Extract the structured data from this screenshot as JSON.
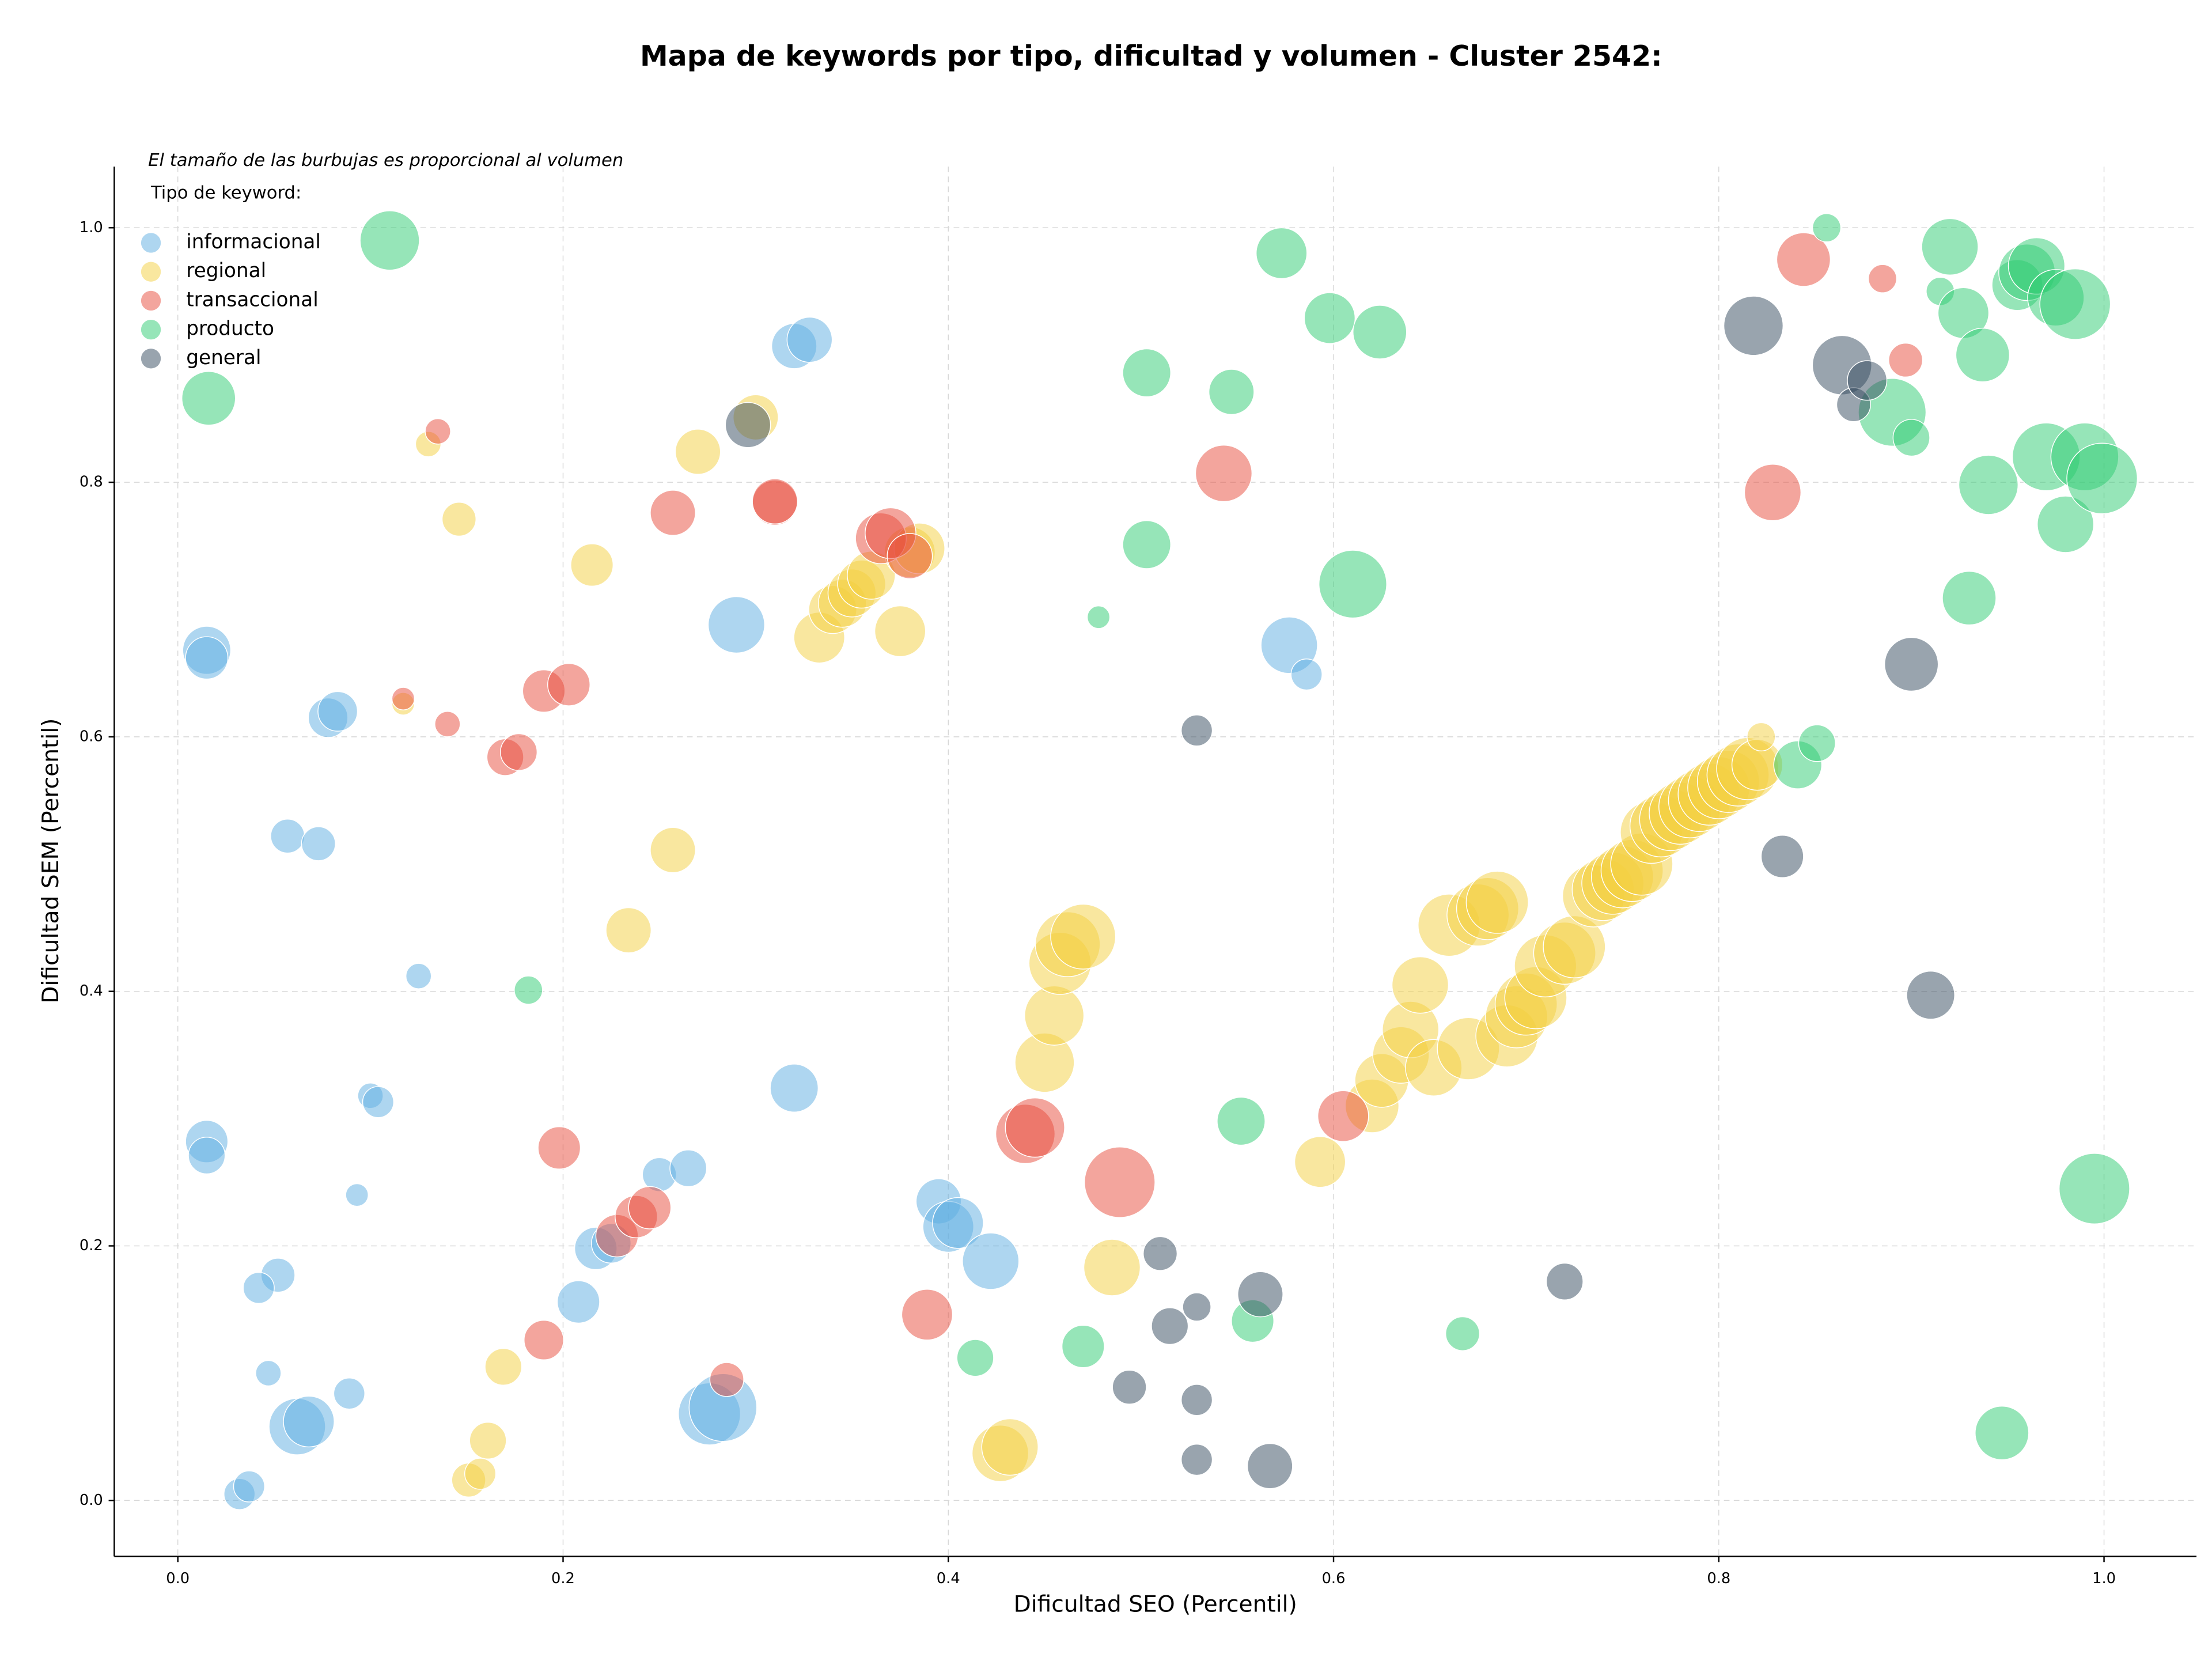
{
  "chart_data": {
    "type": "bubble",
    "title": "Mapa de keywords por tipo, dificultad y volumen - Cluster 2542:",
    "note": "El tamaño de las burbujas es proporcional al volumen",
    "legend_title": "Tipo de keyword:",
    "legend": "upper left",
    "x_label": "Dificultad SEO (Percentil)",
    "y_label": "Dificultad SEM (Percentil)",
    "xlim": [
      -0.033,
      1.048
    ],
    "ylim": [
      -0.044,
      1.048
    ],
    "xticks": [
      {
        "value": 0,
        "label": "0.0"
      },
      0.2,
      0.4,
      0.6,
      0.8,
      {
        "value": 1,
        "label": "1.0"
      }
    ],
    "yticks": [
      {
        "value": 0,
        "label": "0.0"
      },
      0.2,
      0.4,
      0.6,
      0.8,
      {
        "value": 1,
        "label": "1.0"
      }
    ],
    "grid": true,
    "series": [
      {
        "name": "informacional",
        "color": "#5DADE2",
        "x": [
          0.015,
          0.015,
          0.078,
          0.083,
          0.057,
          0.073,
          0.125,
          0.1,
          0.104,
          0.093,
          0.015,
          0.015,
          0.052,
          0.042,
          0.047,
          0.089,
          0.062,
          0.068,
          0.032,
          0.037,
          0.208,
          0.217,
          0.225,
          0.25,
          0.265,
          0.29,
          0.32,
          0.328,
          0.32,
          0.395,
          0.4,
          0.405,
          0.422,
          0.276,
          0.283,
          0.577,
          0.586
        ],
        "y": [
          0.668,
          0.662,
          0.615,
          0.62,
          0.522,
          0.516,
          0.412,
          0.318,
          0.313,
          0.24,
          0.282,
          0.271,
          0.177,
          0.167,
          0.1,
          0.084,
          0.058,
          0.062,
          0.005,
          0.011,
          0.156,
          0.198,
          0.202,
          0.256,
          0.261,
          0.688,
          0.907,
          0.912,
          0.324,
          0.235,
          0.215,
          0.218,
          0.188,
          0.068,
          0.073,
          0.672,
          0.649
        ],
        "sizes": [
          289,
          225,
          196,
          196,
          144,
          144,
          81,
          81,
          121,
          64,
          225,
          169,
          144,
          121,
          81,
          121,
          400,
          324,
          121,
          121,
          225,
          225,
          196,
          144,
          169,
          400,
          256,
          256,
          289,
          256,
          324,
          324,
          400,
          484,
          576,
          400,
          121
        ]
      },
      {
        "name": "regional",
        "color": "#F4D03F",
        "x": [
          0.13,
          0.146,
          0.117,
          0.215,
          0.27,
          0.3,
          0.257,
          0.234,
          0.169,
          0.161,
          0.151,
          0.157,
          0.333,
          0.34,
          0.345,
          0.35,
          0.355,
          0.36,
          0.375,
          0.38,
          0.385,
          0.427,
          0.432,
          0.485,
          0.45,
          0.455,
          0.458,
          0.462,
          0.47,
          0.593,
          0.62,
          0.625,
          0.635,
          0.64,
          0.645,
          0.652,
          0.66,
          0.675,
          0.68,
          0.685,
          0.67,
          0.69,
          0.695,
          0.7,
          0.705,
          0.71,
          0.72,
          0.725,
          0.735,
          0.74,
          0.745,
          0.75,
          0.755,
          0.76,
          0.765,
          0.77,
          0.775,
          0.78,
          0.785,
          0.79,
          0.795,
          0.8,
          0.805,
          0.81,
          0.815,
          0.82,
          0.822
        ],
        "y": [
          0.83,
          0.771,
          0.626,
          0.735,
          0.824,
          0.851,
          0.511,
          0.448,
          0.105,
          0.047,
          0.016,
          0.021,
          0.678,
          0.7,
          0.705,
          0.713,
          0.72,
          0.727,
          0.683,
          0.745,
          0.748,
          0.037,
          0.042,
          0.183,
          0.344,
          0.381,
          0.422,
          0.437,
          0.443,
          0.266,
          0.31,
          0.33,
          0.35,
          0.37,
          0.405,
          0.34,
          0.452,
          0.46,
          0.465,
          0.47,
          0.355,
          0.365,
          0.38,
          0.39,
          0.395,
          0.42,
          0.43,
          0.435,
          0.475,
          0.48,
          0.485,
          0.49,
          0.495,
          0.5,
          0.525,
          0.53,
          0.535,
          0.54,
          0.545,
          0.55,
          0.555,
          0.56,
          0.565,
          0.57,
          0.575,
          0.578,
          0.6
        ],
        "sizes": [
          81,
          144,
          64,
          225,
          256,
          256,
          256,
          256,
          169,
          169,
          144,
          121,
          324,
          289,
          289,
          289,
          289,
          289,
          324,
          324,
          324,
          400,
          400,
          400,
          441,
          441,
          484,
          529,
          529,
          324,
          361,
          361,
          400,
          400,
          400,
          400,
          484,
          484,
          484,
          484,
          484,
          484,
          484,
          484,
          484,
          484,
          484,
          484,
          484,
          484,
          484,
          484,
          484,
          484,
          484,
          484,
          484,
          484,
          484,
          484,
          484,
          484,
          484,
          484,
          484,
          324,
          100
        ]
      },
      {
        "name": "transaccional",
        "color": "#E74C3C",
        "x": [
          0.135,
          0.117,
          0.14,
          0.17,
          0.177,
          0.19,
          0.203,
          0.257,
          0.31,
          0.31,
          0.365,
          0.37,
          0.38,
          0.198,
          0.19,
          0.228,
          0.238,
          0.245,
          0.285,
          0.389,
          0.44,
          0.445,
          0.489,
          0.605,
          0.543,
          0.844,
          0.885,
          0.897,
          0.828
        ],
        "y": [
          0.84,
          0.63,
          0.61,
          0.584,
          0.588,
          0.636,
          0.641,
          0.776,
          0.784,
          0.785,
          0.756,
          0.76,
          0.742,
          0.277,
          0.126,
          0.208,
          0.223,
          0.23,
          0.095,
          0.146,
          0.288,
          0.293,
          0.25,
          0.302,
          0.807,
          0.975,
          0.96,
          0.896,
          0.792
        ],
        "sizes": [
          81,
          64,
          81,
          169,
          169,
          225,
          225,
          256,
          256,
          256,
          324,
          324,
          256,
          225,
          196,
          225,
          225,
          225,
          144,
          324,
          441,
          441,
          625,
          324,
          400,
          361,
          100,
          144,
          400
        ]
      },
      {
        "name": "producto",
        "color": "#2ECC71",
        "x": [
          0.016,
          0.11,
          0.182,
          0.478,
          0.503,
          0.503,
          0.547,
          0.573,
          0.598,
          0.61,
          0.624,
          0.552,
          0.558,
          0.47,
          0.414,
          0.667,
          0.856,
          0.841,
          0.851,
          0.89,
          0.9,
          0.92,
          0.915,
          0.927,
          0.937,
          0.93,
          0.94,
          0.955,
          0.96,
          0.965,
          0.97,
          0.975,
          0.985,
          0.98,
          0.99,
          0.999,
          0.995,
          0.947
        ],
        "y": [
          0.866,
          0.99,
          0.401,
          0.694,
          0.886,
          0.751,
          0.871,
          0.98,
          0.929,
          0.72,
          0.918,
          0.298,
          0.141,
          0.121,
          0.112,
          0.131,
          1.0,
          0.578,
          0.595,
          0.855,
          0.835,
          0.985,
          0.95,
          0.933,
          0.9,
          0.709,
          0.798,
          0.955,
          0.965,
          0.97,
          0.82,
          0.945,
          0.94,
          0.767,
          0.82,
          0.803,
          0.245,
          0.053
        ],
        "sizes": [
          361,
          441,
          100,
          64,
          289,
          289,
          256,
          324,
          324,
          576,
          361,
          289,
          225,
          225,
          169,
          144,
          100,
          289,
          169,
          576,
          169,
          400,
          100,
          324,
          361,
          361,
          441,
          324,
          400,
          400,
          576,
          400,
          625,
          400,
          576,
          625,
          625,
          361
        ]
      },
      {
        "name": "general",
        "color": "#34495E",
        "x": [
          0.296,
          0.529,
          0.51,
          0.515,
          0.529,
          0.494,
          0.529,
          0.529,
          0.562,
          0.567,
          0.72,
          0.818,
          0.833,
          0.864,
          0.87,
          0.877,
          0.9,
          0.91
        ],
        "y": [
          0.845,
          0.605,
          0.194,
          0.137,
          0.152,
          0.089,
          0.079,
          0.032,
          0.162,
          0.027,
          0.172,
          0.923,
          0.506,
          0.892,
          0.861,
          0.88,
          0.657,
          0.397
        ],
        "sizes": [
          256,
          121,
          144,
          169,
          100,
          144,
          121,
          121,
          256,
          256,
          169,
          441,
          225,
          441,
          144,
          196,
          361,
          289
        ]
      }
    ]
  }
}
